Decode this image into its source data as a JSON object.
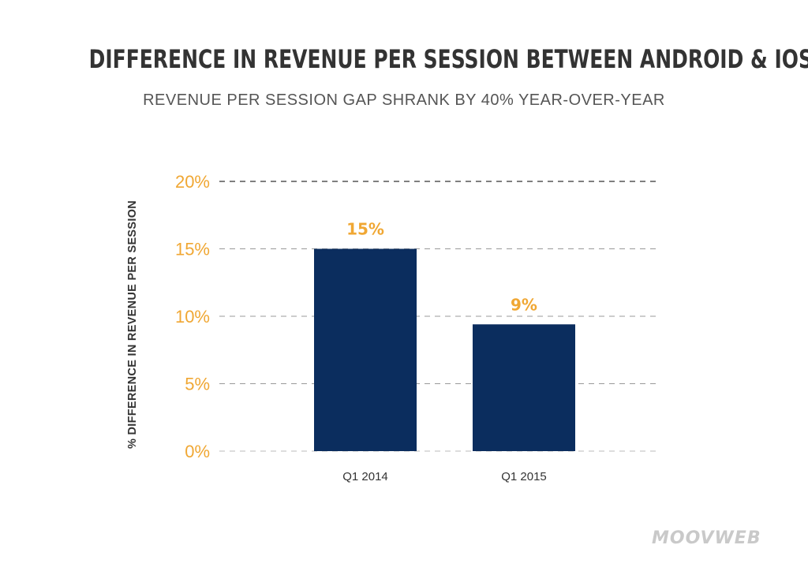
{
  "chart_data": {
    "type": "bar",
    "title": "DIFFERENCE IN REVENUE PER SESSION BETWEEN ANDROID & IOS",
    "subtitle": "REVENUE PER SESSION GAP SHRANK BY 40% YEAR-OVER-YEAR",
    "ylabel": "% DIFFERENCE IN REVENUE PER SESSION",
    "xlabel": "",
    "categories": [
      "Q1 2014",
      "Q1 2015"
    ],
    "values": [
      15,
      9.4
    ],
    "data_labels": [
      "15%",
      "9%"
    ],
    "ylim": [
      0,
      20
    ],
    "yticks": [
      0,
      5,
      10,
      15,
      20
    ],
    "ytick_labels": [
      "0%",
      "5%",
      "10%",
      "15%",
      "20%"
    ],
    "grid": true,
    "bar_color": "#0b2d5e",
    "label_color": "#f0a733",
    "tick_label_color": "#f0a733"
  },
  "brand": {
    "logo_text": "MOOVWEB"
  }
}
